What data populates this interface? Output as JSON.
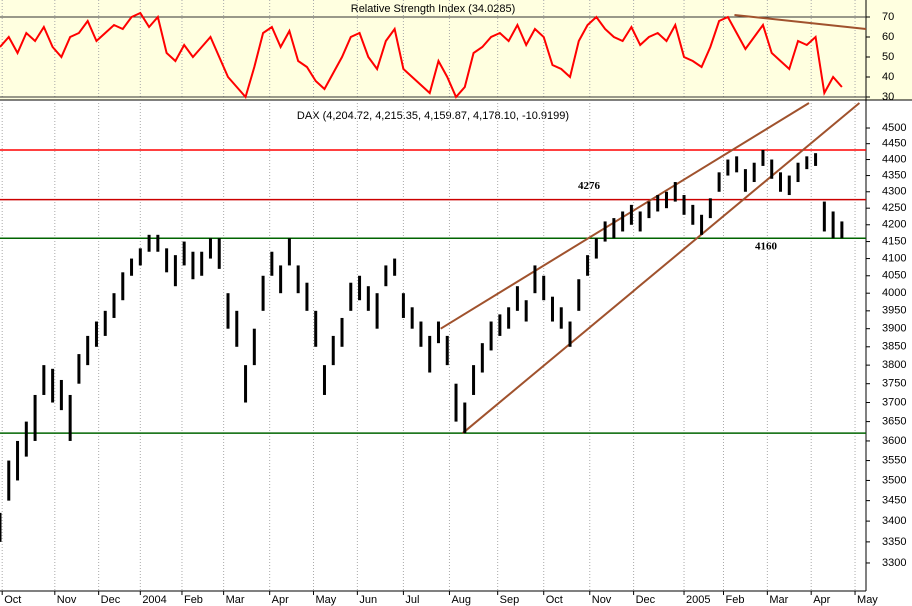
{
  "chart_data": [
    {
      "type": "line",
      "title": "Relative Strength Index (34.0285)",
      "color": "#ff0000",
      "x": [
        0,
        4,
        8,
        12,
        16,
        20,
        24,
        28,
        32,
        36,
        40,
        44,
        48,
        52,
        56,
        60,
        64,
        68,
        72,
        76,
        80,
        84,
        88,
        92,
        96,
        100,
        104,
        108,
        112,
        116,
        120,
        124,
        128,
        132,
        136,
        140,
        144,
        148,
        152,
        156,
        160,
        164,
        168,
        172,
        176,
        180,
        184,
        188,
        192,
        196,
        200,
        204,
        208,
        212,
        216,
        220,
        224,
        228,
        232,
        236,
        240,
        244,
        248,
        252,
        256,
        260,
        264,
        268,
        272,
        276,
        280,
        284,
        288,
        292,
        296,
        300,
        304,
        308,
        312,
        316,
        320,
        324,
        328,
        332,
        336,
        340,
        344,
        348,
        352,
        356,
        360,
        364,
        368,
        372,
        376,
        380,
        384
      ],
      "values": [
        55,
        60,
        52,
        62,
        58,
        65,
        55,
        50,
        60,
        62,
        68,
        58,
        62,
        66,
        64,
        70,
        72,
        65,
        70,
        52,
        48,
        56,
        50,
        55,
        60,
        50,
        40,
        35,
        30,
        45,
        62,
        65,
        55,
        63,
        48,
        45,
        38,
        34,
        42,
        50,
        60,
        62,
        50,
        44,
        58,
        64,
        44,
        40,
        36,
        32,
        48,
        40,
        30,
        35,
        52,
        55,
        60,
        62,
        58,
        66,
        56,
        64,
        60,
        46,
        44,
        40,
        58,
        66,
        70,
        64,
        60,
        58,
        65,
        56,
        60,
        62,
        58,
        66,
        50,
        48,
        45,
        55,
        68,
        70,
        62,
        54,
        60,
        66,
        52,
        48,
        44,
        58,
        56,
        60,
        32,
        40,
        35
      ],
      "xlim": [
        0,
        395
      ],
      "ylim": [
        29,
        73.5
      ],
      "yticks": [
        30,
        40,
        50,
        60,
        70
      ],
      "reference_lines": [
        70,
        30
      ],
      "trendlines": [
        {
          "color": "#a0522d",
          "x": [
            335,
            395
          ],
          "y": [
            71,
            64
          ]
        }
      ]
    },
    {
      "type": "hilo",
      "title": "DAX (4,204.72, 4,215.35, 4,159.87, 4,178.10, -10.9199)",
      "color": "#000000",
      "log": true,
      "grid": true,
      "x": [
        0,
        4,
        8,
        12,
        16,
        20,
        24,
        28,
        32,
        36,
        40,
        44,
        48,
        52,
        56,
        60,
        64,
        68,
        72,
        76,
        80,
        84,
        88,
        92,
        96,
        100,
        104,
        108,
        112,
        116,
        120,
        124,
        128,
        132,
        136,
        140,
        144,
        148,
        152,
        156,
        160,
        164,
        168,
        172,
        176,
        180,
        184,
        188,
        192,
        196,
        200,
        204,
        208,
        212,
        216,
        220,
        224,
        228,
        232,
        236,
        240,
        244,
        248,
        252,
        256,
        260,
        264,
        268,
        272,
        276,
        280,
        284,
        288,
        292,
        296,
        300,
        304,
        308,
        312,
        316,
        320,
        324,
        328,
        332,
        336,
        340,
        344,
        348,
        352,
        356,
        360,
        364,
        368,
        372,
        376,
        380,
        384
      ],
      "high": [
        3420,
        3550,
        3600,
        3650,
        3720,
        3800,
        3790,
        3760,
        3720,
        3830,
        3880,
        3920,
        3950,
        4000,
        4060,
        4100,
        4130,
        4170,
        4170,
        4130,
        4110,
        4150,
        4120,
        4120,
        4160,
        4160,
        4000,
        3950,
        3800,
        3900,
        4050,
        4120,
        4080,
        4160,
        4080,
        4030,
        3950,
        3800,
        3880,
        3930,
        4030,
        4050,
        4020,
        4000,
        4080,
        4100,
        4000,
        3960,
        3920,
        3880,
        3920,
        3880,
        3750,
        3700,
        3800,
        3860,
        3920,
        3940,
        3960,
        4020,
        3980,
        4080,
        4050,
        3990,
        3960,
        3920,
        4040,
        4110,
        4160,
        4210,
        4220,
        4240,
        4260,
        4240,
        4270,
        4290,
        4300,
        4330,
        4290,
        4260,
        4230,
        4280,
        4360,
        4400,
        4410,
        4370,
        4390,
        4430,
        4400,
        4360,
        4350,
        4390,
        4410,
        4420,
        4270,
        4240,
        4210
      ],
      "low": [
        3350,
        3450,
        3500,
        3560,
        3600,
        3720,
        3700,
        3680,
        3600,
        3750,
        3800,
        3850,
        3880,
        3930,
        3980,
        4050,
        4080,
        4120,
        4120,
        4060,
        4020,
        4080,
        4040,
        4050,
        4100,
        4070,
        3900,
        3850,
        3700,
        3800,
        3950,
        4050,
        4000,
        4080,
        4000,
        3950,
        3850,
        3720,
        3800,
        3850,
        3950,
        3980,
        3950,
        3900,
        4020,
        4050,
        3930,
        3900,
        3850,
        3780,
        3860,
        3800,
        3650,
        3620,
        3720,
        3780,
        3840,
        3880,
        3900,
        3950,
        3920,
        4000,
        3980,
        3920,
        3900,
        3850,
        3950,
        4050,
        4100,
        4150,
        4160,
        4180,
        4200,
        4180,
        4220,
        4240,
        4250,
        4270,
        4230,
        4200,
        4170,
        4220,
        4300,
        4350,
        4360,
        4300,
        4330,
        4380,
        4340,
        4300,
        4290,
        4330,
        4370,
        4380,
        4180,
        4160,
        4160
      ],
      "xlim": [
        0,
        395
      ],
      "ylim": [
        3237,
        4581
      ],
      "yticks": [
        3300,
        3350,
        3400,
        3450,
        3500,
        3550,
        3600,
        3650,
        3700,
        3750,
        3800,
        3850,
        3900,
        3950,
        4000,
        4050,
        4100,
        4150,
        4200,
        4250,
        4300,
        4350,
        4400,
        4450,
        4500
      ],
      "xticks": [
        {
          "value": 1,
          "label": "Oct"
        },
        {
          "value": 25,
          "label": "Nov"
        },
        {
          "value": 45,
          "label": "Dec"
        },
        {
          "value": 64,
          "label": "2004"
        },
        {
          "value": 83,
          "label": "Feb"
        },
        {
          "value": 102,
          "label": "Mar"
        },
        {
          "value": 123,
          "label": "Apr"
        },
        {
          "value": 143,
          "label": "May"
        },
        {
          "value": 163,
          "label": "Jun"
        },
        {
          "value": 184,
          "label": "Jul"
        },
        {
          "value": 205,
          "label": "Aug"
        },
        {
          "value": 227,
          "label": "Sep"
        },
        {
          "value": 248,
          "label": "Oct"
        },
        {
          "value": 269,
          "label": "Nov"
        },
        {
          "value": 289,
          "label": "Dec"
        },
        {
          "value": 312,
          "label": "2005"
        },
        {
          "value": 330,
          "label": "Feb"
        },
        {
          "value": 350,
          "label": "Mar"
        },
        {
          "value": 370,
          "label": "Apr"
        },
        {
          "value": 390,
          "label": "May"
        }
      ],
      "hlines": [
        {
          "value": 4430,
          "color": "#ff0000"
        },
        {
          "value": 4276,
          "color": "#cc0000",
          "labeled": true
        },
        {
          "value": 4160,
          "color": "#006400",
          "labeled": true
        },
        {
          "value": 3620,
          "color": "#006400"
        }
      ],
      "trendlines": [
        {
          "color": "#a0522d",
          "x": [
            201,
            369
          ],
          "y": [
            3900,
            4581
          ]
        },
        {
          "color": "#a0522d",
          "x": [
            211,
            392
          ],
          "y": [
            3620,
            4581
          ]
        }
      ]
    }
  ]
}
